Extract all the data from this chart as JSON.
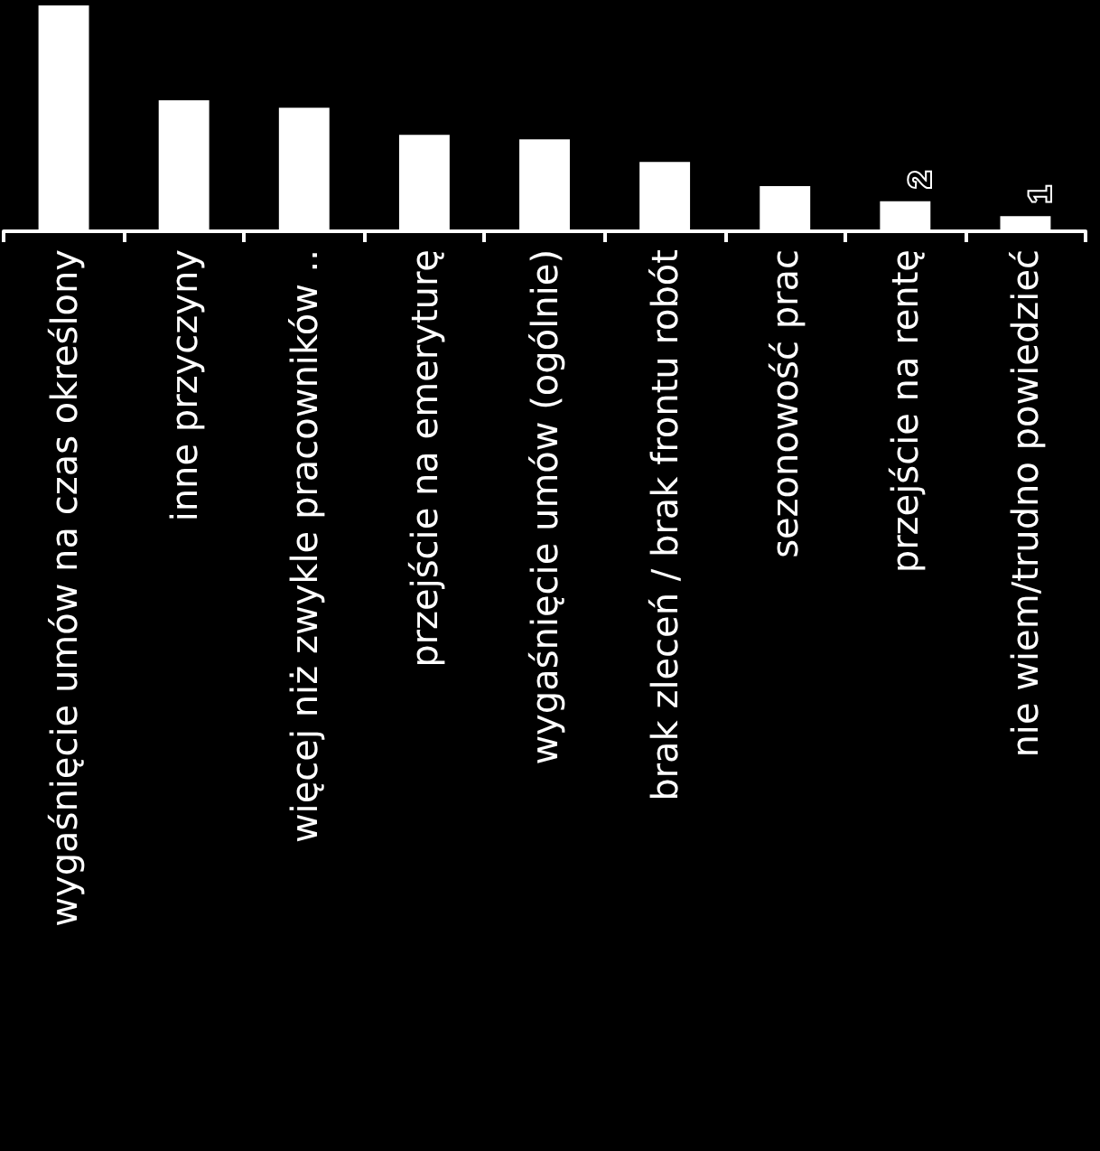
{
  "chart_data": {
    "type": "bar",
    "categories": [
      "wygaśnięcie umów na czas określony",
      "inne przyczyny",
      "więcej niż zwykle pracowników ..",
      "przejście na emeryturę",
      "wygaśnięcie umów (ogólnie)",
      "brak zleceń / brak frontu robót",
      "sezonowość prac",
      "przejście na rentę",
      "nie wiem/trudno powiedzieć"
    ],
    "values": [
      15,
      8.7,
      8.2,
      6.4,
      6.1,
      4.6,
      3,
      2,
      1
    ],
    "value_labels": [
      null,
      null,
      null,
      null,
      null,
      null,
      null,
      "2",
      "1"
    ],
    "color": "#ffffff",
    "ylim": [
      0,
      15
    ]
  }
}
